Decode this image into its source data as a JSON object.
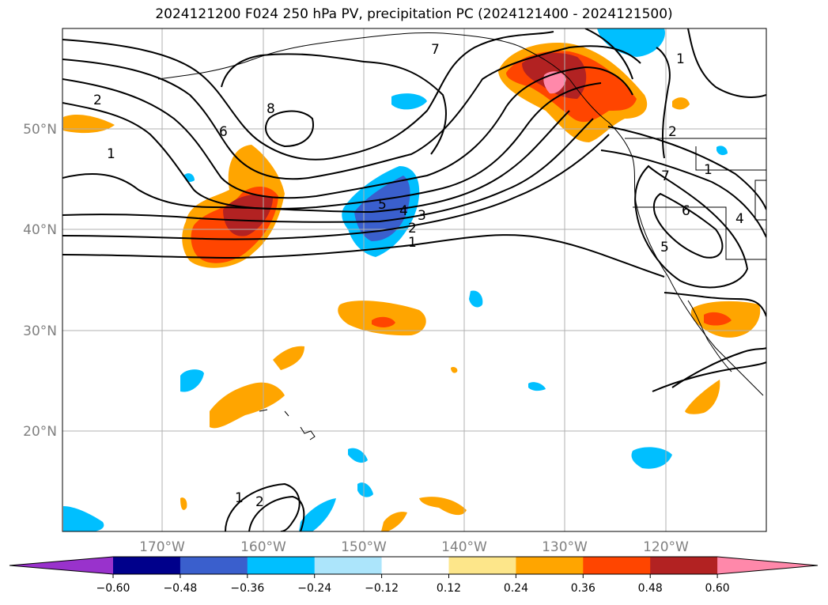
{
  "title": "2024121200 F024 250 hPa PV, precipitation PC (2024121400 - 2024121500)",
  "lon_ticks": [
    "170°W",
    "160°W",
    "150°W",
    "140°W",
    "130°W",
    "120°W"
  ],
  "lat_ticks": [
    "50°N",
    "40°N",
    "30°N",
    "20°N"
  ],
  "colorbar": {
    "ticks": [
      "−0.60",
      "−0.48",
      "−0.36",
      "−0.24",
      "−0.12",
      "0.12",
      "0.24",
      "0.36",
      "0.48",
      "0.60"
    ],
    "colors": [
      "#9932cc",
      "#00008b",
      "#3a5fcd",
      "#00bfff",
      "#ace5fb",
      "#ffffff",
      "#fde68a",
      "#ffa500",
      "#ff4500",
      "#b22222",
      "#ff88aa"
    ]
  },
  "contour_labels": [
    "7",
    "2",
    "1",
    "6",
    "8",
    "5",
    "4",
    "3",
    "2",
    "1",
    "1",
    "2",
    "1",
    "7",
    "6",
    "5",
    "4",
    "1",
    "2"
  ],
  "colors": {
    "frame": "#000000",
    "grid": "#b0b0b0",
    "pv_line": "#000000"
  }
}
